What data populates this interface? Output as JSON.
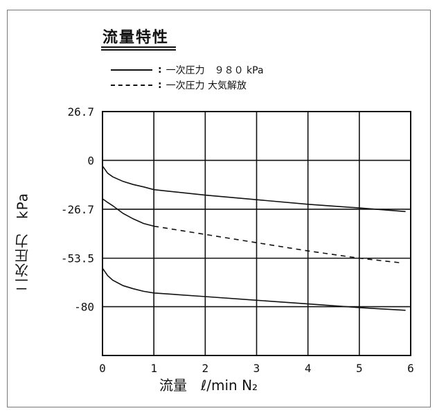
{
  "chart_data": {
    "type": "line",
    "title": "流量特性",
    "xlabel": "流量　ℓ/min N₂",
    "ylabel": "二次圧力　kPa",
    "xlim": [
      0,
      6
    ],
    "ylim": [
      -106.7,
      26.7
    ],
    "x_ticks": [
      "0",
      "1",
      "2",
      "3",
      "4",
      "5",
      "6"
    ],
    "y_ticks": [
      {
        "value": 26.7,
        "label": "26.7"
      },
      {
        "value": 0,
        "label": "0"
      },
      {
        "value": -26.7,
        "label": "-26.7"
      },
      {
        "value": -53.5,
        "label": "-53.5"
      },
      {
        "value": -80,
        "label": "-80"
      }
    ],
    "grid": true,
    "legend": [
      {
        "style": "solid",
        "label": "一次圧力　９８０ kPa"
      },
      {
        "style": "dashed",
        "label": "一次圧力 大気解放"
      }
    ],
    "series": [
      {
        "style": "solid",
        "x": [
          0,
          0.1,
          0.2,
          0.4,
          0.6,
          0.8,
          1,
          2,
          3,
          4,
          5,
          5.9
        ],
        "y": [
          -3,
          -7,
          -9,
          -11.5,
          -13.2,
          -14.5,
          -16,
          -19,
          -21.5,
          -24,
          -26,
          -28
        ]
      },
      {
        "style": "solid",
        "x": [
          0,
          0.1,
          0.2,
          0.4,
          0.6,
          0.8,
          1
        ],
        "y": [
          -21,
          -23,
          -24.8,
          -29,
          -32,
          -34.5,
          -36
        ]
      },
      {
        "style": "dashed",
        "x": [
          1,
          2,
          3,
          4,
          5,
          5.8
        ],
        "y": [
          -36,
          -40.5,
          -45,
          -49.5,
          -53.5,
          -56
        ]
      },
      {
        "style": "solid",
        "x": [
          0,
          0.1,
          0.2,
          0.4,
          0.6,
          0.8,
          1,
          2,
          3,
          4,
          5,
          5.9
        ],
        "y": [
          -59,
          -63,
          -65.5,
          -68.5,
          -70.2,
          -71.6,
          -72.5,
          -74.5,
          -76.5,
          -78.5,
          -80.5,
          -82
        ]
      }
    ]
  }
}
